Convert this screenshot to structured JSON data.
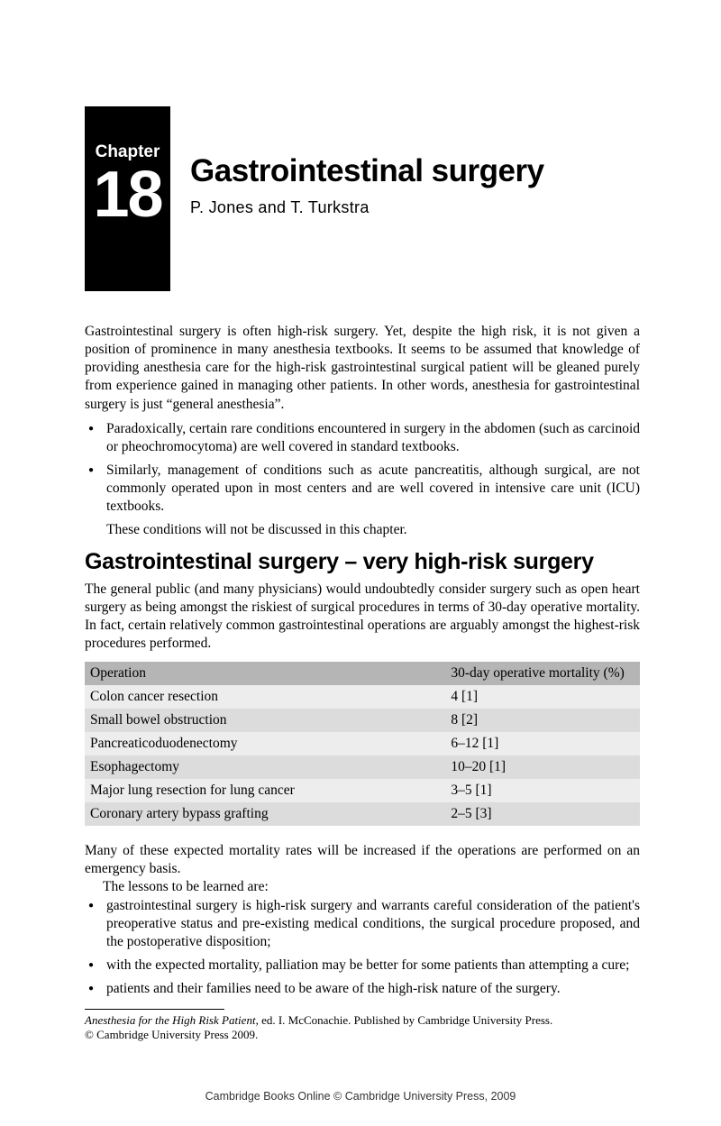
{
  "chapter": {
    "label": "Chapter",
    "number": "18",
    "title": "Gastrointestinal surgery",
    "authors": "P. Jones and T. Turkstra"
  },
  "intro": "Gastrointestinal surgery is often high-risk surgery. Yet, despite the high risk, it is not given a position of prominence in many anesthesia textbooks. It seems to be assumed that knowledge of providing anesthesia care for the high-risk gastrointestinal surgical patient will be gleaned purely from experience gained in managing other patients. In other words, anesthesia for gastrointestinal surgery is just “general anesthesia”.",
  "intro_bullets": [
    "Paradoxically, certain rare conditions encountered in surgery in the abdomen (such as carcinoid or pheochromocytoma) are well covered in standard textbooks.",
    "Similarly, management of conditions such as acute pancreatitis, although surgical, are not commonly operated upon in most centers and are well covered in intensive care unit (ICU) textbooks."
  ],
  "intro_closing": "These conditions will not be discussed in this chapter.",
  "section1": {
    "heading": "Gastrointestinal surgery – very high-risk surgery",
    "para1": "The general public (and many physicians) would undoubtedly consider surgery such as open heart surgery as being amongst the riskiest of surgical procedures in terms of 30-day operative mortality. In fact, certain relatively common gastrointestinal operations are arguably amongst the highest-risk procedures performed."
  },
  "table": {
    "columns": [
      "Operation",
      "30-day operative mortality (%)"
    ],
    "rows": [
      [
        "Colon cancer resection",
        "4 [1]"
      ],
      [
        "Small bowel obstruction",
        "8 [2]"
      ],
      [
        "Pancreaticoduodenectomy",
        "6–12 [1]"
      ],
      [
        "Esophagectomy",
        "10–20 [1]"
      ],
      [
        "Major lung resection for lung cancer",
        "3–5 [1]"
      ],
      [
        "Coronary artery bypass grafting",
        "2–5 [3]"
      ]
    ],
    "header_bg": "#b5b5b5",
    "row_odd_bg": "#ededed",
    "row_even_bg": "#dcdcdc"
  },
  "after_table": {
    "para": "Many of these expected mortality rates will be increased if the operations are performed on an emergency basis.",
    "lead": "The lessons to be learned are:",
    "bullets": [
      "gastrointestinal surgery is high-risk surgery and warrants careful consideration of the patient's preoperative status and pre-existing medical conditions, the surgical procedure proposed, and the postoperative disposition;",
      "with the expected mortality, palliation may be better for some patients than attempting a cure;",
      "patients and their families need to be aware of the high-risk nature of the surgery."
    ]
  },
  "footnote": {
    "italic": "Anesthesia for the High Risk Patient",
    "rest": ", ed. I. McConachie. Published by Cambridge University Press.",
    "copyright": "© Cambridge University Press 2009."
  },
  "footer": "Cambridge Books Online © Cambridge University Press, 2009"
}
